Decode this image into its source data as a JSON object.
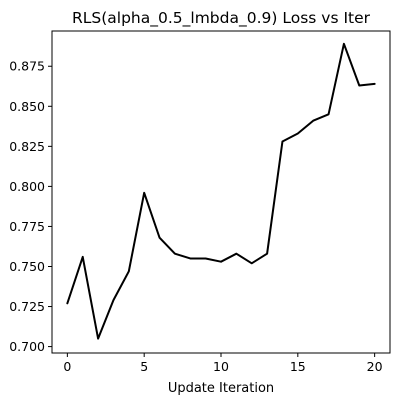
{
  "chart_data": {
    "type": "line",
    "title": "RLS(alpha_0.5_lmbda_0.9) Loss vs Iter",
    "xlabel": "Update Iteration",
    "ylabel": "",
    "xlim": [
      -1,
      21
    ],
    "ylim": [
      0.696,
      0.897
    ],
    "x_ticks": [
      0,
      5,
      10,
      15,
      20
    ],
    "y_ticks": [
      0.7,
      0.725,
      0.75,
      0.775,
      0.8,
      0.825,
      0.85,
      0.875
    ],
    "x_tick_labels": [
      "0",
      "5",
      "10",
      "15",
      "20"
    ],
    "y_tick_labels": [
      "0.700",
      "0.725",
      "0.750",
      "0.775",
      "0.800",
      "0.825",
      "0.850",
      "0.875"
    ],
    "grid": false,
    "legend": "none",
    "series": [
      {
        "color": "#000000",
        "x": [
          0,
          1,
          2,
          3,
          4,
          5,
          6,
          7,
          8,
          9,
          10,
          11,
          12,
          13,
          14,
          15,
          16,
          17,
          18,
          19,
          20
        ],
        "values": [
          0.727,
          0.756,
          0.705,
          0.729,
          0.747,
          0.796,
          0.768,
          0.758,
          0.755,
          0.755,
          0.753,
          0.758,
          0.752,
          0.758,
          0.828,
          0.833,
          0.841,
          0.845,
          0.889,
          0.863,
          0.864
        ]
      }
    ]
  }
}
